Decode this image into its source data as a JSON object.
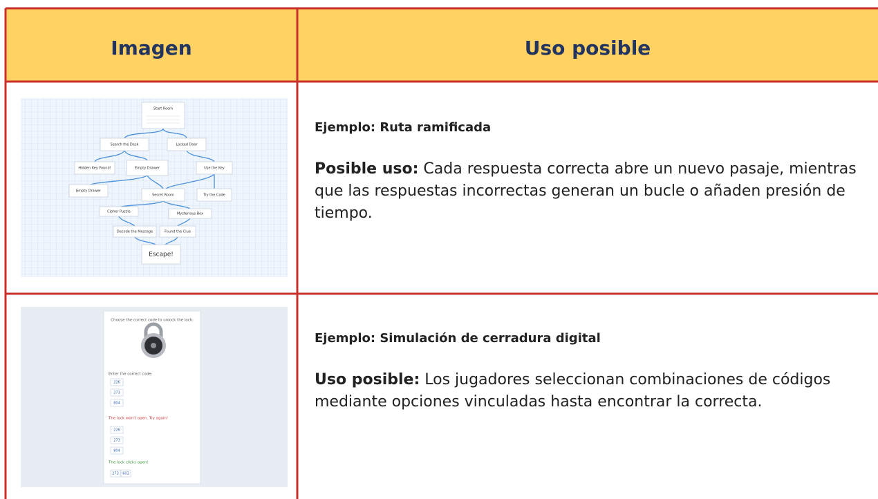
{
  "table": {
    "header": [
      "Imagen",
      "Uso posible"
    ],
    "rows": [
      {
        "image": {
          "nodes": [
            "Start Room",
            "Search the Desk",
            "Locked Door",
            "Hidden Key Found!",
            "Empty Drawer",
            "Use the Key",
            "Empty Drawer",
            "Secret Room",
            "Try the Code",
            "Cipher Puzzle",
            "Mysterious Box",
            "Decode the Message",
            "Found the Clue",
            "Escape!"
          ]
        },
        "example": "Ejemplo: Ruta ramificada",
        "use_label": "Posible uso:",
        "use_text": "Cada respuesta correcta abre un nuevo pasaje, mientras que las respuestas incorrectas generan un bucle o añaden presión de tiempo."
      },
      {
        "image": {
          "prompt": "Choose the correct code to unlock the lock:",
          "code_label": "Enter the correct code:",
          "first_options": [
            "226",
            "273",
            "804"
          ],
          "fail_message": "The lock won't open. Try again!",
          "second_options": [
            "226",
            "273",
            "804"
          ],
          "success_message": "The lock clicks open!",
          "final_code": [
            "273",
            "603"
          ]
        },
        "example": "Ejemplo: Simulación de cerradura digital",
        "use_label": "Uso posible:",
        "use_text": "Los jugadores seleccionan combinaciones de códigos mediante opciones vinculadas hasta encontrar la correcta."
      }
    ]
  }
}
